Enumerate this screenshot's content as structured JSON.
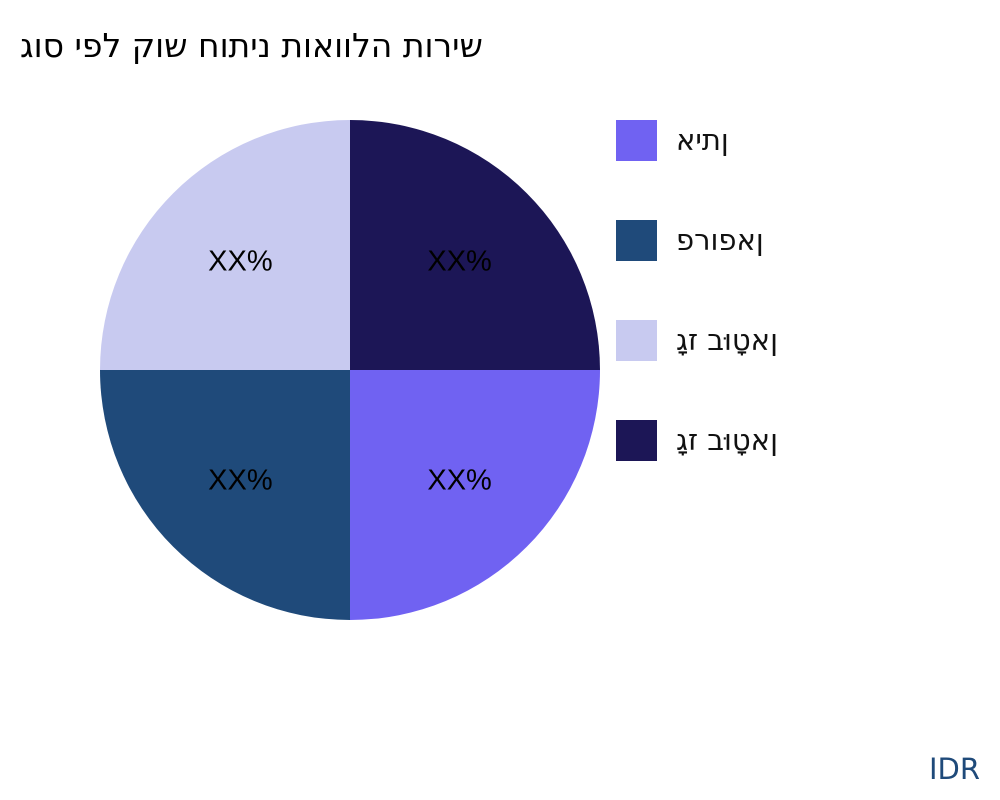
{
  "chart_data": {
    "type": "pie",
    "title": "גוס יפל קוש חותינ תואוולה תוריש",
    "direction": "clockwise",
    "start": "3 o'clock",
    "slices": [
      {
        "label": "איתן",
        "value": 25,
        "data_label": "XX%",
        "color": "#7062f2"
      },
      {
        "label": "פרופאן",
        "value": 25,
        "data_label": "XX%",
        "color": "#1f4a7a"
      },
      {
        "label": "גָז בוּטָאן",
        "value": 25,
        "data_label": "XX%",
        "color": "#c8caf0"
      },
      {
        "label": "גָז בוּטָאן",
        "value": 25,
        "data_label": "XX%",
        "color": "#1c1656"
      }
    ],
    "legend_position": "right"
  },
  "watermark": "IDR"
}
